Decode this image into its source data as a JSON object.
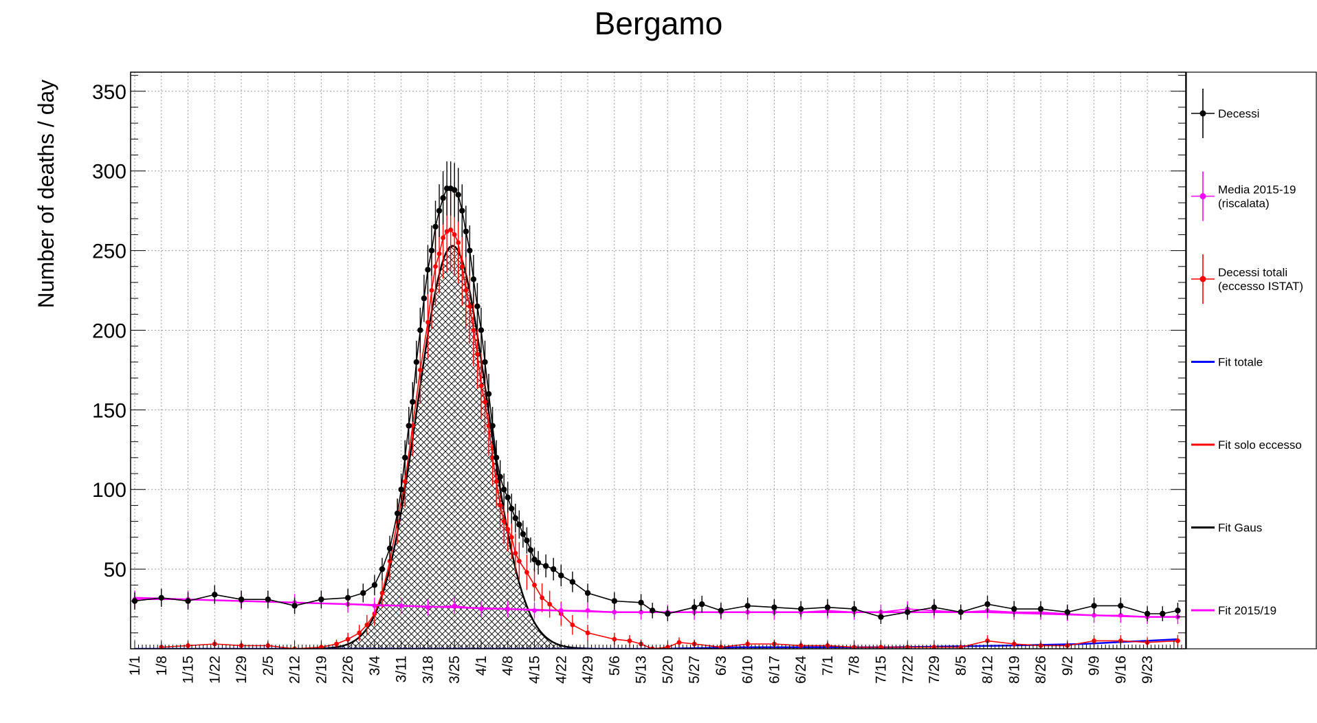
{
  "chart_data": {
    "type": "line",
    "title": "Bergamo",
    "xlabel": "",
    "ylabel": "Number of deaths / day",
    "ylim": [
      0,
      362
    ],
    "yticks": [
      50,
      100,
      150,
      200,
      250,
      300,
      350
    ],
    "xlim_day": [
      1,
      276
    ],
    "x_ticks": [
      {
        "label": "1/1",
        "day": 1
      },
      {
        "label": "1/8",
        "day": 8
      },
      {
        "label": "1/15",
        "day": 15
      },
      {
        "label": "1/22",
        "day": 22
      },
      {
        "label": "1/29",
        "day": 29
      },
      {
        "label": "2/5",
        "day": 36
      },
      {
        "label": "2/12",
        "day": 43
      },
      {
        "label": "2/19",
        "day": 50
      },
      {
        "label": "2/26",
        "day": 57
      },
      {
        "label": "3/4",
        "day": 64
      },
      {
        "label": "3/11",
        "day": 71
      },
      {
        "label": "3/18",
        "day": 78
      },
      {
        "label": "3/25",
        "day": 85
      },
      {
        "label": "4/1",
        "day": 92
      },
      {
        "label": "4/8",
        "day": 99
      },
      {
        "label": "4/15",
        "day": 106
      },
      {
        "label": "4/22",
        "day": 113
      },
      {
        "label": "4/29",
        "day": 120
      },
      {
        "label": "5/6",
        "day": 127
      },
      {
        "label": "5/13",
        "day": 134
      },
      {
        "label": "5/20",
        "day": 141
      },
      {
        "label": "5/27",
        "day": 148
      },
      {
        "label": "6/3",
        "day": 155
      },
      {
        "label": "6/10",
        "day": 162
      },
      {
        "label": "6/17",
        "day": 169
      },
      {
        "label": "6/24",
        "day": 176
      },
      {
        "label": "7/1",
        "day": 183
      },
      {
        "label": "7/8",
        "day": 190
      },
      {
        "label": "7/15",
        "day": 197
      },
      {
        "label": "7/22",
        "day": 204
      },
      {
        "label": "7/29",
        "day": 211
      },
      {
        "label": "8/5",
        "day": 218
      },
      {
        "label": "8/12",
        "day": 225
      },
      {
        "label": "8/19",
        "day": 232
      },
      {
        "label": "8/26",
        "day": 239
      },
      {
        "label": "9/2",
        "day": 246
      },
      {
        "label": "9/9",
        "day": 253
      },
      {
        "label": "9/16",
        "day": 260
      },
      {
        "label": "9/23",
        "day": 267
      }
    ],
    "legend_position": "right",
    "series": [
      {
        "name": "Decessi",
        "color": "#000000",
        "style": "markers-errorbars",
        "points": [
          [
            1,
            30
          ],
          [
            8,
            32
          ],
          [
            15,
            30
          ],
          [
            22,
            34
          ],
          [
            29,
            31
          ],
          [
            36,
            31
          ],
          [
            43,
            27
          ],
          [
            50,
            31
          ],
          [
            57,
            32
          ],
          [
            61,
            35
          ],
          [
            64,
            40
          ],
          [
            66,
            50
          ],
          [
            68,
            63
          ],
          [
            70,
            85
          ],
          [
            71,
            100
          ],
          [
            72,
            120
          ],
          [
            73,
            140
          ],
          [
            74,
            155
          ],
          [
            75,
            180
          ],
          [
            76,
            200
          ],
          [
            77,
            220
          ],
          [
            78,
            238
          ],
          [
            79,
            250
          ],
          [
            80,
            265
          ],
          [
            81,
            275
          ],
          [
            82,
            283
          ],
          [
            83,
            289
          ],
          [
            84,
            289
          ],
          [
            85,
            288
          ],
          [
            86,
            285
          ],
          [
            87,
            275
          ],
          [
            88,
            262
          ],
          [
            89,
            250
          ],
          [
            90,
            232
          ],
          [
            91,
            215
          ],
          [
            92,
            200
          ],
          [
            93,
            180
          ],
          [
            94,
            160
          ],
          [
            95,
            140
          ],
          [
            96,
            120
          ],
          [
            97,
            108
          ],
          [
            98,
            100
          ],
          [
            99,
            95
          ],
          [
            100,
            88
          ],
          [
            101,
            82
          ],
          [
            102,
            78
          ],
          [
            103,
            72
          ],
          [
            104,
            68
          ],
          [
            105,
            62
          ],
          [
            106,
            56
          ],
          [
            107,
            54
          ],
          [
            109,
            52
          ],
          [
            111,
            50
          ],
          [
            113,
            46
          ],
          [
            116,
            42
          ],
          [
            120,
            35
          ],
          [
            127,
            30
          ],
          [
            134,
            29
          ],
          [
            137,
            24
          ],
          [
            141,
            22
          ],
          [
            148,
            26
          ],
          [
            150,
            28
          ],
          [
            155,
            24
          ],
          [
            162,
            27
          ],
          [
            169,
            26
          ],
          [
            176,
            25
          ],
          [
            183,
            26
          ],
          [
            190,
            25
          ],
          [
            197,
            20
          ],
          [
            204,
            23
          ],
          [
            211,
            26
          ],
          [
            218,
            23
          ],
          [
            225,
            28
          ],
          [
            232,
            25
          ],
          [
            239,
            25
          ],
          [
            246,
            23
          ],
          [
            253,
            27
          ],
          [
            260,
            27
          ],
          [
            267,
            22
          ],
          [
            271,
            22
          ],
          [
            275,
            24
          ]
        ]
      },
      {
        "name": "Media 2015-19\n(riscalata)",
        "color": "#ff00ff",
        "style": "markers-errorbars",
        "points": [
          [
            1,
            31
          ],
          [
            15,
            31
          ],
          [
            29,
            30
          ],
          [
            43,
            29
          ],
          [
            57,
            28
          ],
          [
            64,
            27
          ],
          [
            71,
            27
          ],
          [
            78,
            26
          ],
          [
            85,
            27
          ],
          [
            92,
            25
          ],
          [
            99,
            25
          ],
          [
            106,
            24
          ],
          [
            113,
            24
          ],
          [
            120,
            24
          ],
          [
            127,
            23
          ],
          [
            134,
            23
          ],
          [
            141,
            23
          ],
          [
            148,
            23
          ],
          [
            155,
            23
          ],
          [
            162,
            23
          ],
          [
            169,
            23
          ],
          [
            176,
            23
          ],
          [
            183,
            24
          ],
          [
            190,
            23
          ],
          [
            197,
            23
          ],
          [
            204,
            25
          ],
          [
            211,
            24
          ],
          [
            218,
            23
          ],
          [
            225,
            24
          ],
          [
            232,
            23
          ],
          [
            239,
            23
          ],
          [
            246,
            22
          ],
          [
            253,
            21
          ],
          [
            260,
            21
          ],
          [
            267,
            20
          ],
          [
            275,
            20
          ]
        ]
      },
      {
        "name": "Decessi totali\n(eccesso ISTAT)",
        "color": "#ff0000",
        "style": "markers-errorbars",
        "points": [
          [
            8,
            1
          ],
          [
            15,
            2
          ],
          [
            22,
            3
          ],
          [
            29,
            2
          ],
          [
            36,
            2
          ],
          [
            43,
            0
          ],
          [
            50,
            1
          ],
          [
            54,
            3
          ],
          [
            57,
            6
          ],
          [
            60,
            10
          ],
          [
            62,
            15
          ],
          [
            64,
            22
          ],
          [
            66,
            35
          ],
          [
            68,
            55
          ],
          [
            70,
            80
          ],
          [
            72,
            105
          ],
          [
            74,
            140
          ],
          [
            76,
            175
          ],
          [
            78,
            205
          ],
          [
            79,
            225
          ],
          [
            80,
            240
          ],
          [
            81,
            248
          ],
          [
            82,
            258
          ],
          [
            83,
            262
          ],
          [
            84,
            263
          ],
          [
            85,
            260
          ],
          [
            86,
            255
          ],
          [
            87,
            240
          ],
          [
            88,
            225
          ],
          [
            89,
            215
          ],
          [
            90,
            200
          ],
          [
            91,
            185
          ],
          [
            92,
            165
          ],
          [
            93,
            155
          ],
          [
            94,
            140
          ],
          [
            95,
            120
          ],
          [
            96,
            105
          ],
          [
            97,
            90
          ],
          [
            98,
            80
          ],
          [
            99,
            75
          ],
          [
            100,
            70
          ],
          [
            101,
            60
          ],
          [
            102,
            55
          ],
          [
            104,
            48
          ],
          [
            106,
            40
          ],
          [
            108,
            32
          ],
          [
            110,
            28
          ],
          [
            113,
            22
          ],
          [
            116,
            15
          ],
          [
            120,
            10
          ],
          [
            127,
            6
          ],
          [
            131,
            5
          ],
          [
            134,
            3
          ],
          [
            137,
            0
          ],
          [
            141,
            1
          ],
          [
            144,
            4
          ],
          [
            148,
            3
          ],
          [
            155,
            1
          ],
          [
            162,
            3
          ],
          [
            169,
            3
          ],
          [
            176,
            2
          ],
          [
            183,
            2
          ],
          [
            190,
            1
          ],
          [
            197,
            1
          ],
          [
            204,
            1
          ],
          [
            211,
            1
          ],
          [
            218,
            1
          ],
          [
            225,
            5
          ],
          [
            232,
            3
          ],
          [
            239,
            2
          ],
          [
            246,
            2
          ],
          [
            253,
            5
          ],
          [
            260,
            5
          ],
          [
            267,
            4
          ],
          [
            275,
            5
          ]
        ]
      },
      {
        "name": "Fit totale",
        "color": "#0000ff",
        "style": "line",
        "points": [
          [
            1,
            0
          ],
          [
            120,
            0
          ],
          [
            140,
            0
          ],
          [
            160,
            1
          ],
          [
            200,
            1
          ],
          [
            230,
            2
          ],
          [
            250,
            3
          ],
          [
            275,
            6
          ]
        ]
      },
      {
        "name": "Fit solo eccesso",
        "color": "#ff0000",
        "style": "line",
        "points": []
      },
      {
        "name": "Fit Gaus",
        "color": "#000000",
        "style": "line-hatched",
        "gaussian": {
          "amplitude": 253,
          "mean_day": 84.5,
          "sigma_days": 9.2
        }
      },
      {
        "name": "Fit 2015/19",
        "color": "#ff00ff",
        "style": "line",
        "points": [
          [
            1,
            32
          ],
          [
            15,
            31
          ],
          [
            29,
            30
          ],
          [
            43,
            29
          ],
          [
            57,
            28
          ],
          [
            71,
            27
          ],
          [
            85,
            26
          ],
          [
            99,
            25
          ],
          [
            113,
            24
          ],
          [
            127,
            23
          ],
          [
            141,
            23
          ],
          [
            155,
            23
          ],
          [
            169,
            23
          ],
          [
            183,
            23
          ],
          [
            197,
            23
          ],
          [
            211,
            23
          ],
          [
            225,
            23
          ],
          [
            239,
            22
          ],
          [
            253,
            21
          ],
          [
            267,
            20
          ],
          [
            275,
            20
          ]
        ]
      }
    ]
  }
}
